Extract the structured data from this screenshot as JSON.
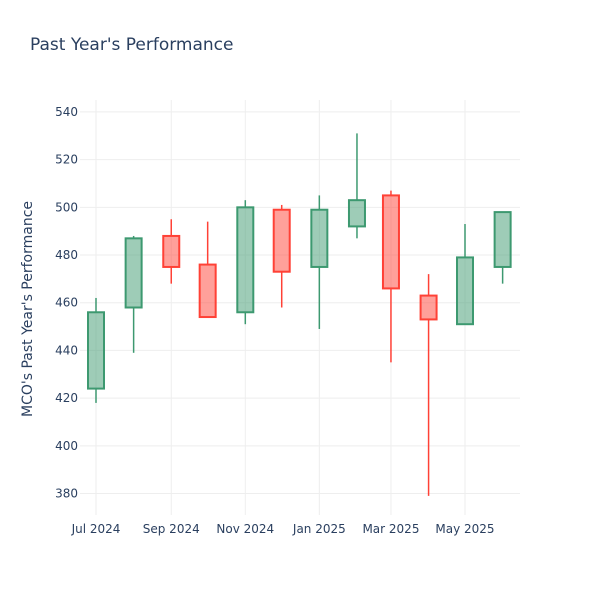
{
  "chart_data": {
    "type": "candlestick",
    "title": "Past Year's Performance",
    "xlabel": "",
    "ylabel": "MCO's Past Year's Performance",
    "ylim": [
      371,
      545
    ],
    "y_ticks": [
      380,
      400,
      420,
      440,
      460,
      480,
      500,
      520,
      540
    ],
    "x_ticks": [
      {
        "label": "Jul 2024",
        "date": "2024-07-01"
      },
      {
        "label": "Sep 2024",
        "date": "2024-09-01"
      },
      {
        "label": "Nov 2024",
        "date": "2024-11-01"
      },
      {
        "label": "Jan 2025",
        "date": "2025-01-01"
      },
      {
        "label": "Mar 2025",
        "date": "2025-03-01"
      },
      {
        "label": "May 2025",
        "date": "2025-05-01"
      }
    ],
    "grid": true,
    "colors": {
      "increasing": "#3d9970",
      "decreasing": "#ff4136"
    },
    "candles": [
      {
        "date": "2024-07-01",
        "open": 424,
        "high": 462,
        "low": 418,
        "close": 456
      },
      {
        "date": "2024-08-01",
        "open": 458,
        "high": 488,
        "low": 439,
        "close": 487
      },
      {
        "date": "2024-09-01",
        "open": 488,
        "high": 495,
        "low": 468,
        "close": 475
      },
      {
        "date": "2024-10-01",
        "open": 476,
        "high": 494,
        "low": 454,
        "close": 454
      },
      {
        "date": "2024-11-01",
        "open": 456,
        "high": 503,
        "low": 451,
        "close": 500
      },
      {
        "date": "2024-12-01",
        "open": 499,
        "high": 501,
        "low": 458,
        "close": 473
      },
      {
        "date": "2025-01-01",
        "open": 475,
        "high": 505,
        "low": 449,
        "close": 499
      },
      {
        "date": "2025-02-01",
        "open": 492,
        "high": 531,
        "low": 487,
        "close": 503
      },
      {
        "date": "2025-03-01",
        "open": 505,
        "high": 507,
        "low": 435,
        "close": 466
      },
      {
        "date": "2025-04-01",
        "open": 463,
        "high": 472,
        "low": 379,
        "close": 453
      },
      {
        "date": "2025-05-01",
        "open": 451,
        "high": 493,
        "low": 451,
        "close": 479
      },
      {
        "date": "2025-06-01",
        "open": 475,
        "high": 498,
        "low": 468,
        "close": 498
      }
    ]
  }
}
